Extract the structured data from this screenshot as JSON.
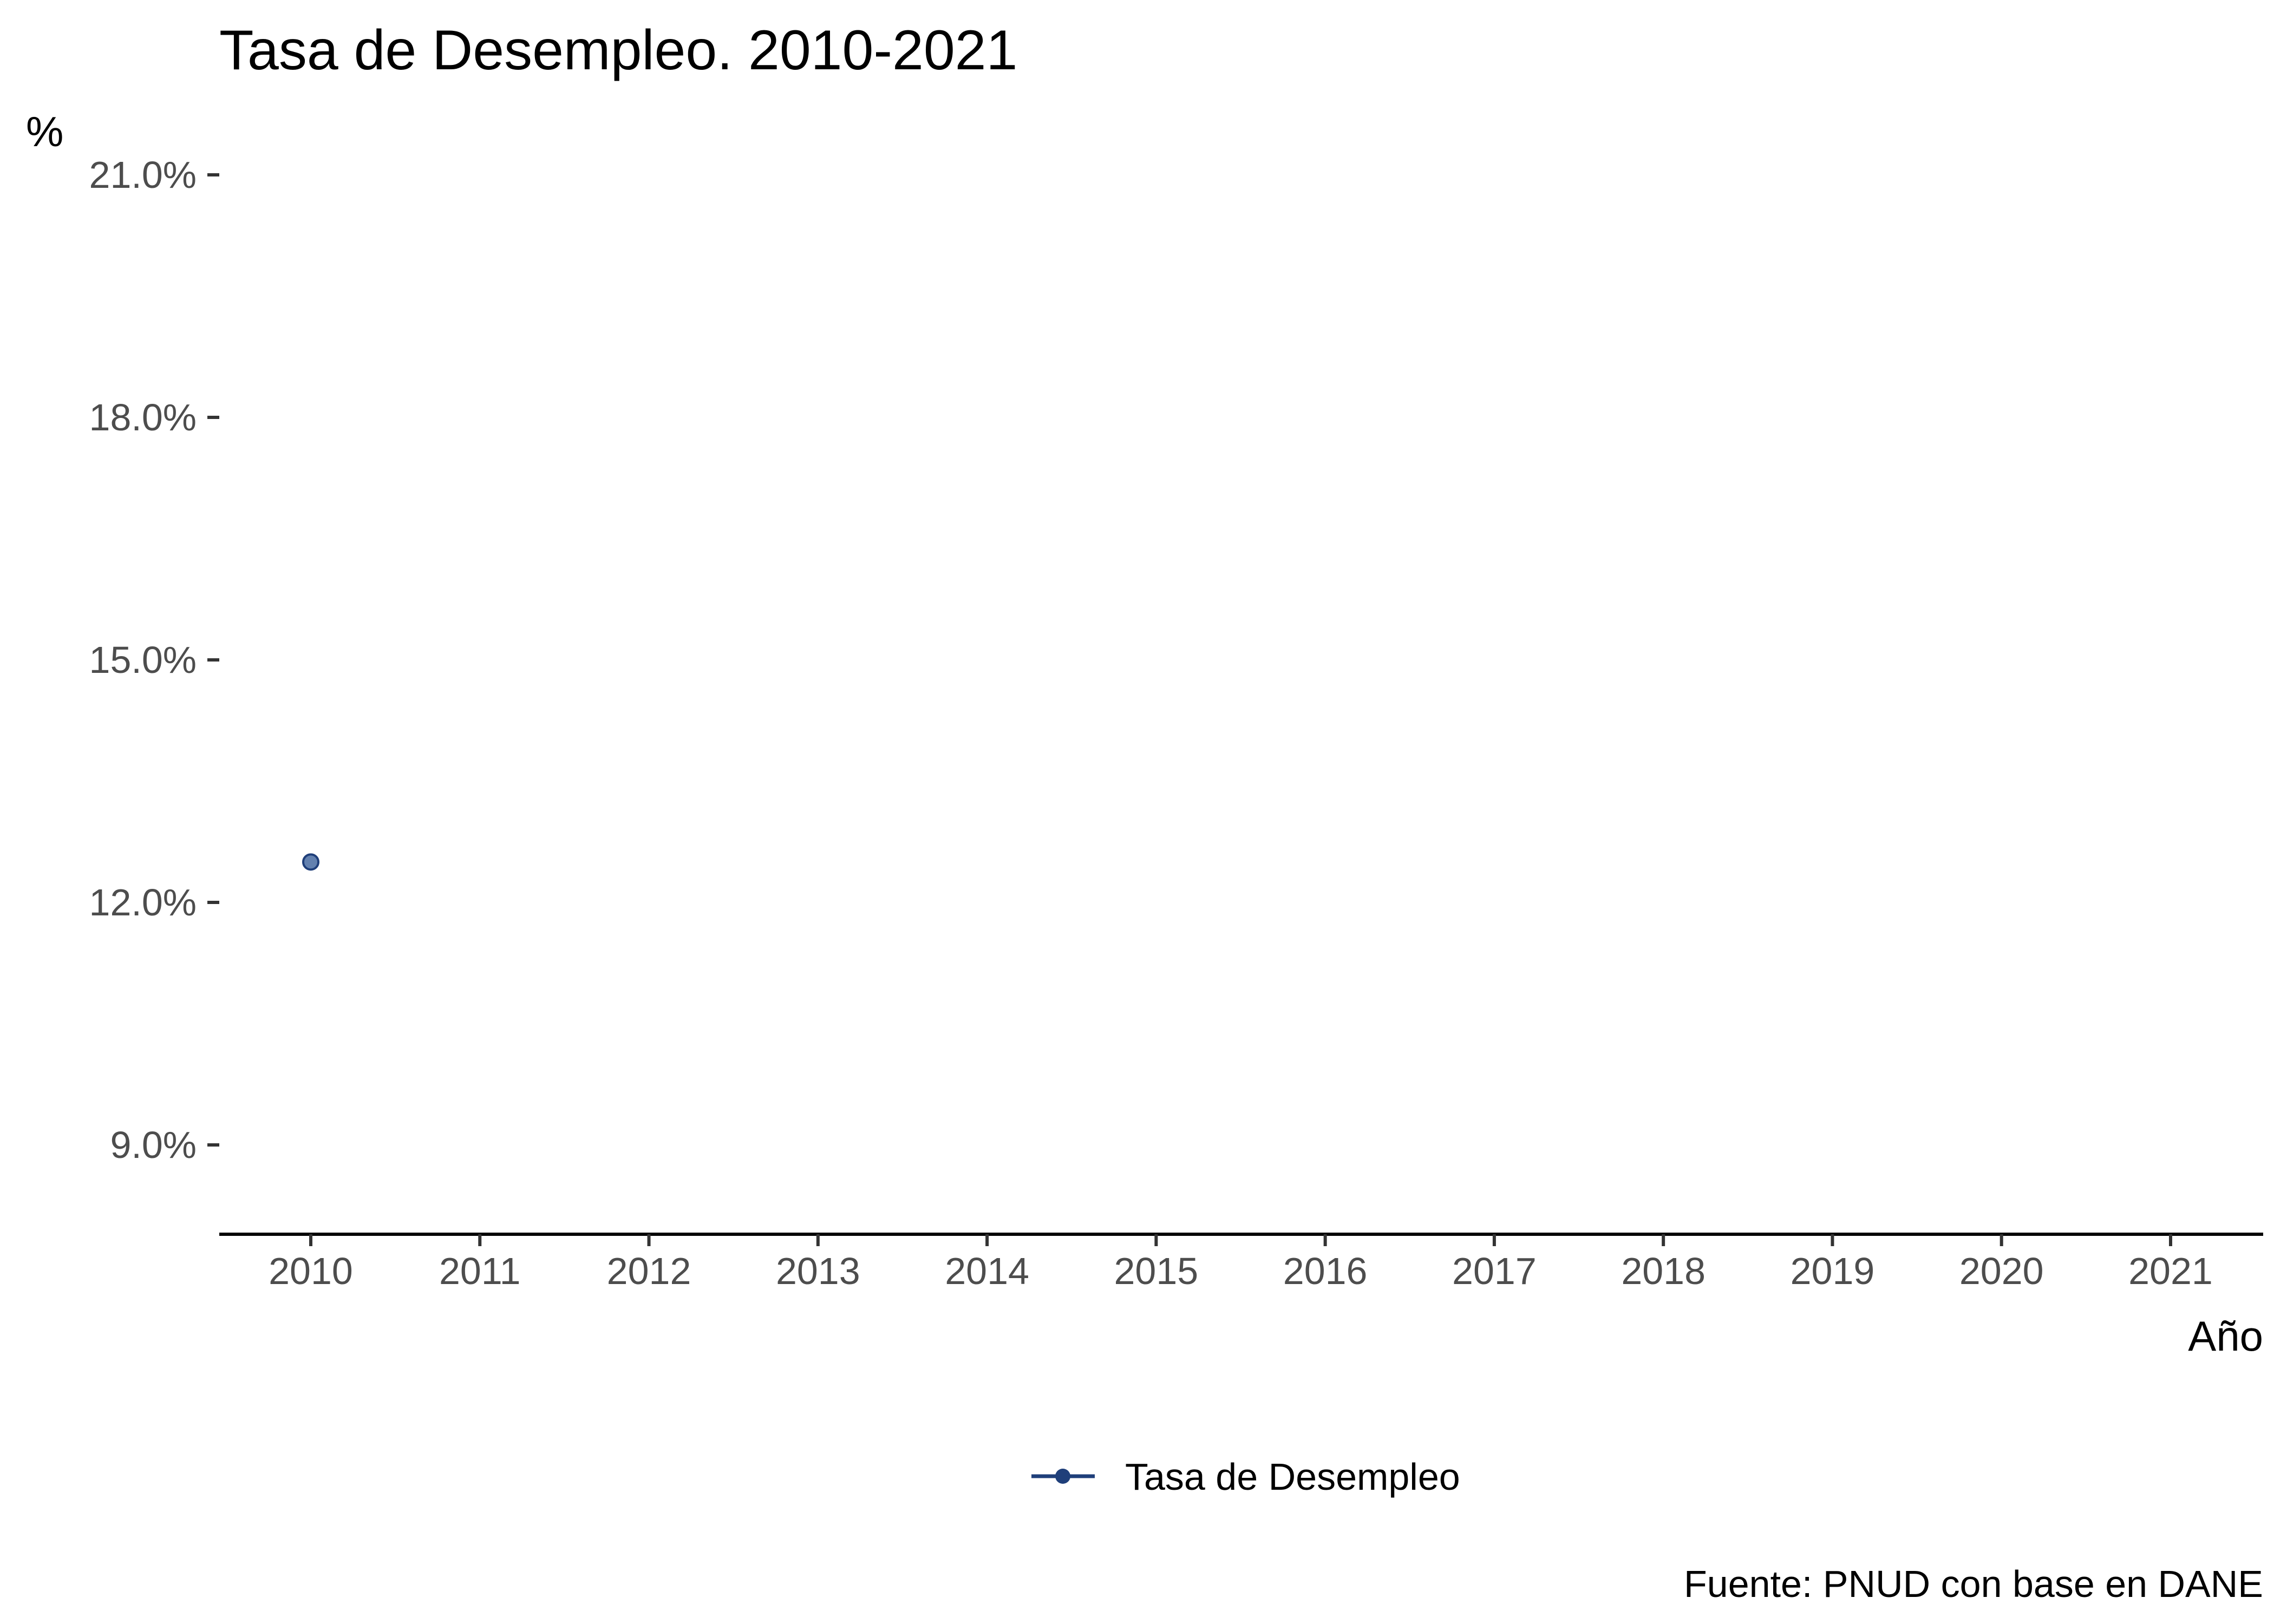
{
  "chart_data": {
    "type": "line",
    "title": "Tasa de Desempleo. 2010-2021",
    "ylabel": "%",
    "xlabel": "Año",
    "categories": [
      "2010",
      "2011",
      "2012",
      "2013",
      "2014",
      "2015",
      "2016",
      "2017",
      "2018",
      "2019",
      "2020",
      "2021"
    ],
    "xlim": [
      2010,
      2021
    ],
    "ylim": [
      7.9,
      21.0
    ],
    "yticks": [
      9.0,
      12.0,
      15.0,
      18.0,
      21.0
    ],
    "ytick_labels": [
      "9.0%",
      "12.0%",
      "15.0%",
      "18.0%",
      "21.0%"
    ],
    "series": [
      {
        "name": "Tasa de Desempleo",
        "x": [
          2010
        ],
        "values": [
          12.5
        ],
        "color": "#1f3f7a",
        "point_color": "#5b7aab"
      }
    ],
    "grid": false,
    "legend_position": "bottom",
    "caption": "Fuente: PNUD con base en DANE"
  }
}
